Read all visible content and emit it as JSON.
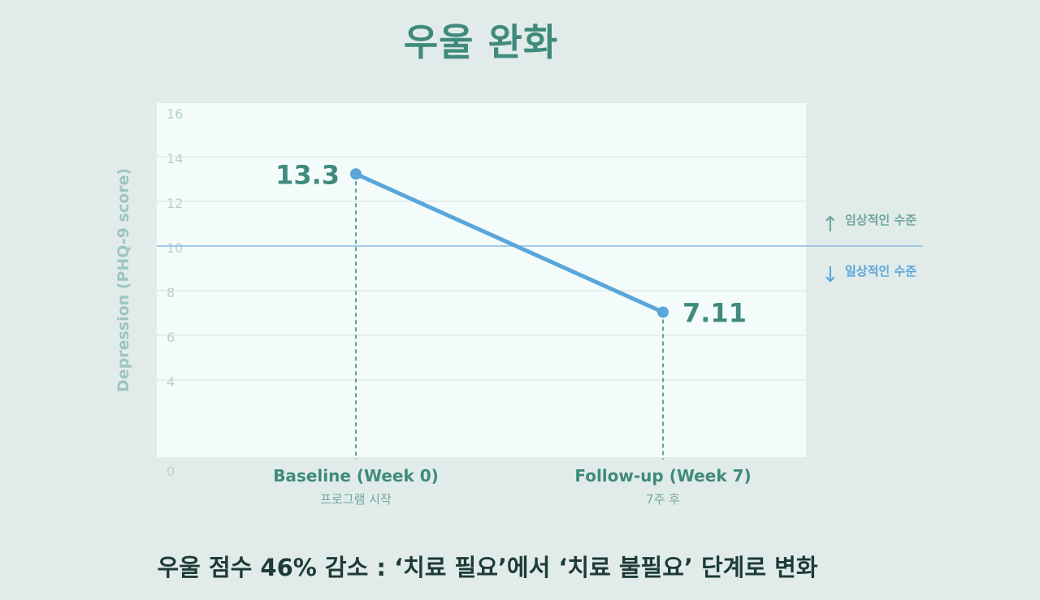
{
  "page": {
    "title": "우울 완화"
  },
  "caption": "우울 점수 46% 감소 : ‘치료 필요’에서 ‘치료 불필요’ 단계로 변화",
  "colors": {
    "background": "#e1ecea",
    "plot_bg": "#f3fcfb",
    "accent": "#3f8a7c",
    "line": "#5aa6da",
    "threshold": "#8cbfe3",
    "tick_text": "#b6d1cb",
    "annotation_up": "#6fa79a",
    "annotation_down": "#5aa6da"
  },
  "chart_data": {
    "type": "line",
    "ylabel": "Depression (PHQ-9 score)",
    "ylim": [
      0,
      16
    ],
    "yticks": [
      0,
      4,
      6,
      8,
      10,
      12,
      14,
      16
    ],
    "grid": true,
    "categories": [
      {
        "label": "Baseline (Week 0)",
        "sublabel": "프로그램 시작"
      },
      {
        "label": "Follow-up (Week 7)",
        "sublabel": "7주 후"
      }
    ],
    "series": [
      {
        "values": [
          13.3,
          7.11
        ],
        "labels": [
          "13.3",
          "7.11"
        ]
      }
    ],
    "threshold": {
      "value": 10,
      "label_above": "임상적인 수준",
      "label_below": "일상적인 수준",
      "arrow_above": "↑",
      "arrow_below": "↓"
    }
  }
}
